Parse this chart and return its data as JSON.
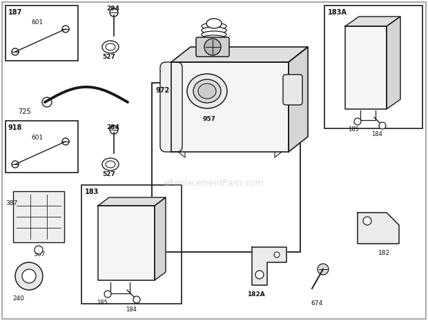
{
  "bg_color": "#ffffff",
  "line_color": "#1a1a1a",
  "text_color": "#111111",
  "watermark": "eReplacementParts.com",
  "figsize": [
    6.2,
    4.65
  ],
  "dpi": 100
}
